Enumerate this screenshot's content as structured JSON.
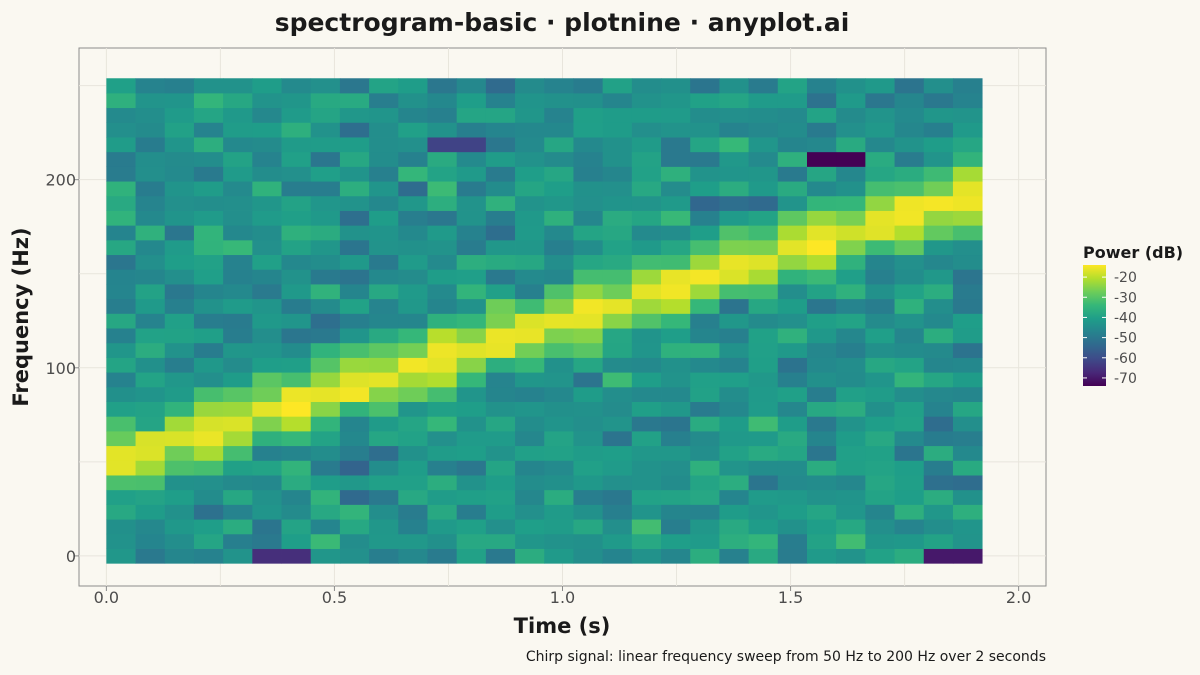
{
  "chart_data": {
    "type": "heatmap",
    "title": "spectrogram-basic · plotnine · anyplot.ai",
    "caption": "Chirp signal: linear frequency sweep from 50 Hz to 200 Hz over 2 seconds",
    "xlabel": "Time (s)",
    "ylabel": "Frequency (Hz)",
    "xlim": [
      -0.06,
      2.06
    ],
    "ylim": [
      -16,
      270
    ],
    "x_ticks": [
      {
        "value": 0.0,
        "label": "0.0"
      },
      {
        "value": 0.5,
        "label": "0.5"
      },
      {
        "value": 1.0,
        "label": "1.0"
      },
      {
        "value": 1.5,
        "label": "1.5"
      },
      {
        "value": 2.0,
        "label": "2.0"
      }
    ],
    "y_ticks": [
      {
        "value": 0,
        "label": "0"
      },
      {
        "value": 100,
        "label": "100"
      },
      {
        "value": 200,
        "label": "200"
      }
    ],
    "time_start": 0.032,
    "time_step": 0.064,
    "time_bins": 30,
    "freq_start": 0,
    "freq_step": 7.8125,
    "freq_bins": 33,
    "chirp": {
      "f0": 50,
      "f1": 200,
      "duration": 2.0
    },
    "power_range": [
      -74,
      -14
    ],
    "noise_floor_db": -43,
    "signal_peak_db": -16,
    "notable_lows": [
      {
        "t": 1.6,
        "f": 210,
        "db": -74
      },
      {
        "t": 1.86,
        "f": 0,
        "db": -70
      },
      {
        "t": 0.39,
        "f": 0,
        "db": -66
      },
      {
        "t": 0.77,
        "f": 218,
        "db": -62
      }
    ],
    "legend": {
      "title": "Power (dB)",
      "position": "right",
      "ticks": [
        {
          "value": -20,
          "label": "-20"
        },
        {
          "value": -30,
          "label": "-30"
        },
        {
          "value": -40,
          "label": "-40"
        },
        {
          "value": -50,
          "label": "-50"
        },
        {
          "value": -60,
          "label": "-60"
        },
        {
          "value": -70,
          "label": "-70"
        }
      ]
    },
    "colormap": [
      "#440154",
      "#482878",
      "#3E4A89",
      "#31688E",
      "#26828E",
      "#1F9E89",
      "#35B779",
      "#6DCD59",
      "#B4DE2C",
      "#FDE725"
    ],
    "grid": true,
    "background": "#FAF8F1"
  }
}
